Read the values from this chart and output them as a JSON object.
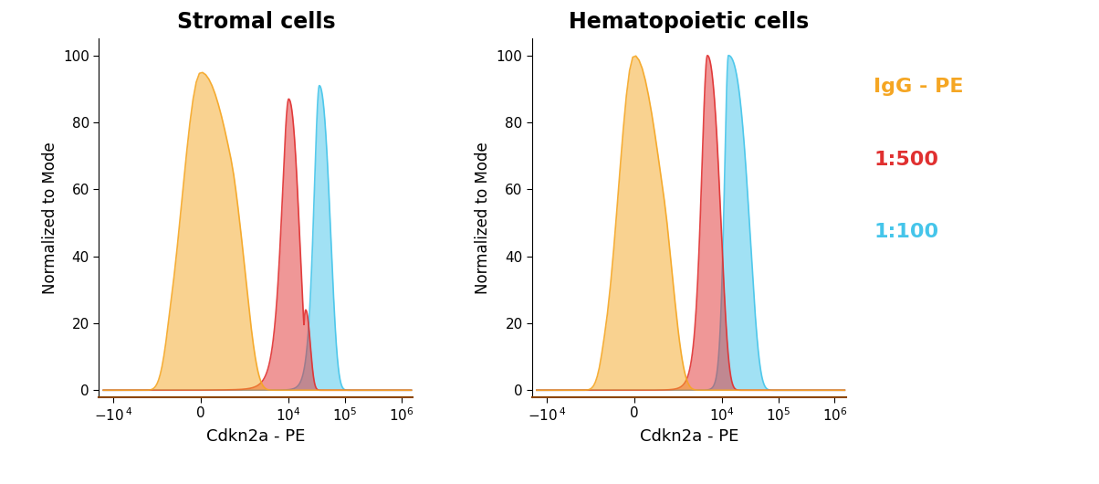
{
  "title_left": "Stromal cells",
  "title_right": "Hematopoietic cells",
  "xlabel": "Cdkn2a - PE",
  "ylabel": "Normalized to Mode",
  "ylim": [
    -2,
    105
  ],
  "yticks": [
    0,
    20,
    40,
    60,
    80,
    100
  ],
  "legend_labels": [
    "IgG - PE",
    "1:500",
    "1:100"
  ],
  "legend_colors": [
    "#F5A623",
    "#E03030",
    "#45C5EA"
  ],
  "color_orange": "#F5A623",
  "color_red": "#E03030",
  "color_cyan": "#45C5EA",
  "alpha_fill": 0.5,
  "background": "#ffffff",
  "linthresh": 1000,
  "linscale": 0.5,
  "xlim_min": -18000,
  "xlim_max": 1600000,
  "tick_positions": [
    -10000,
    0,
    10000,
    100000,
    1000000
  ]
}
